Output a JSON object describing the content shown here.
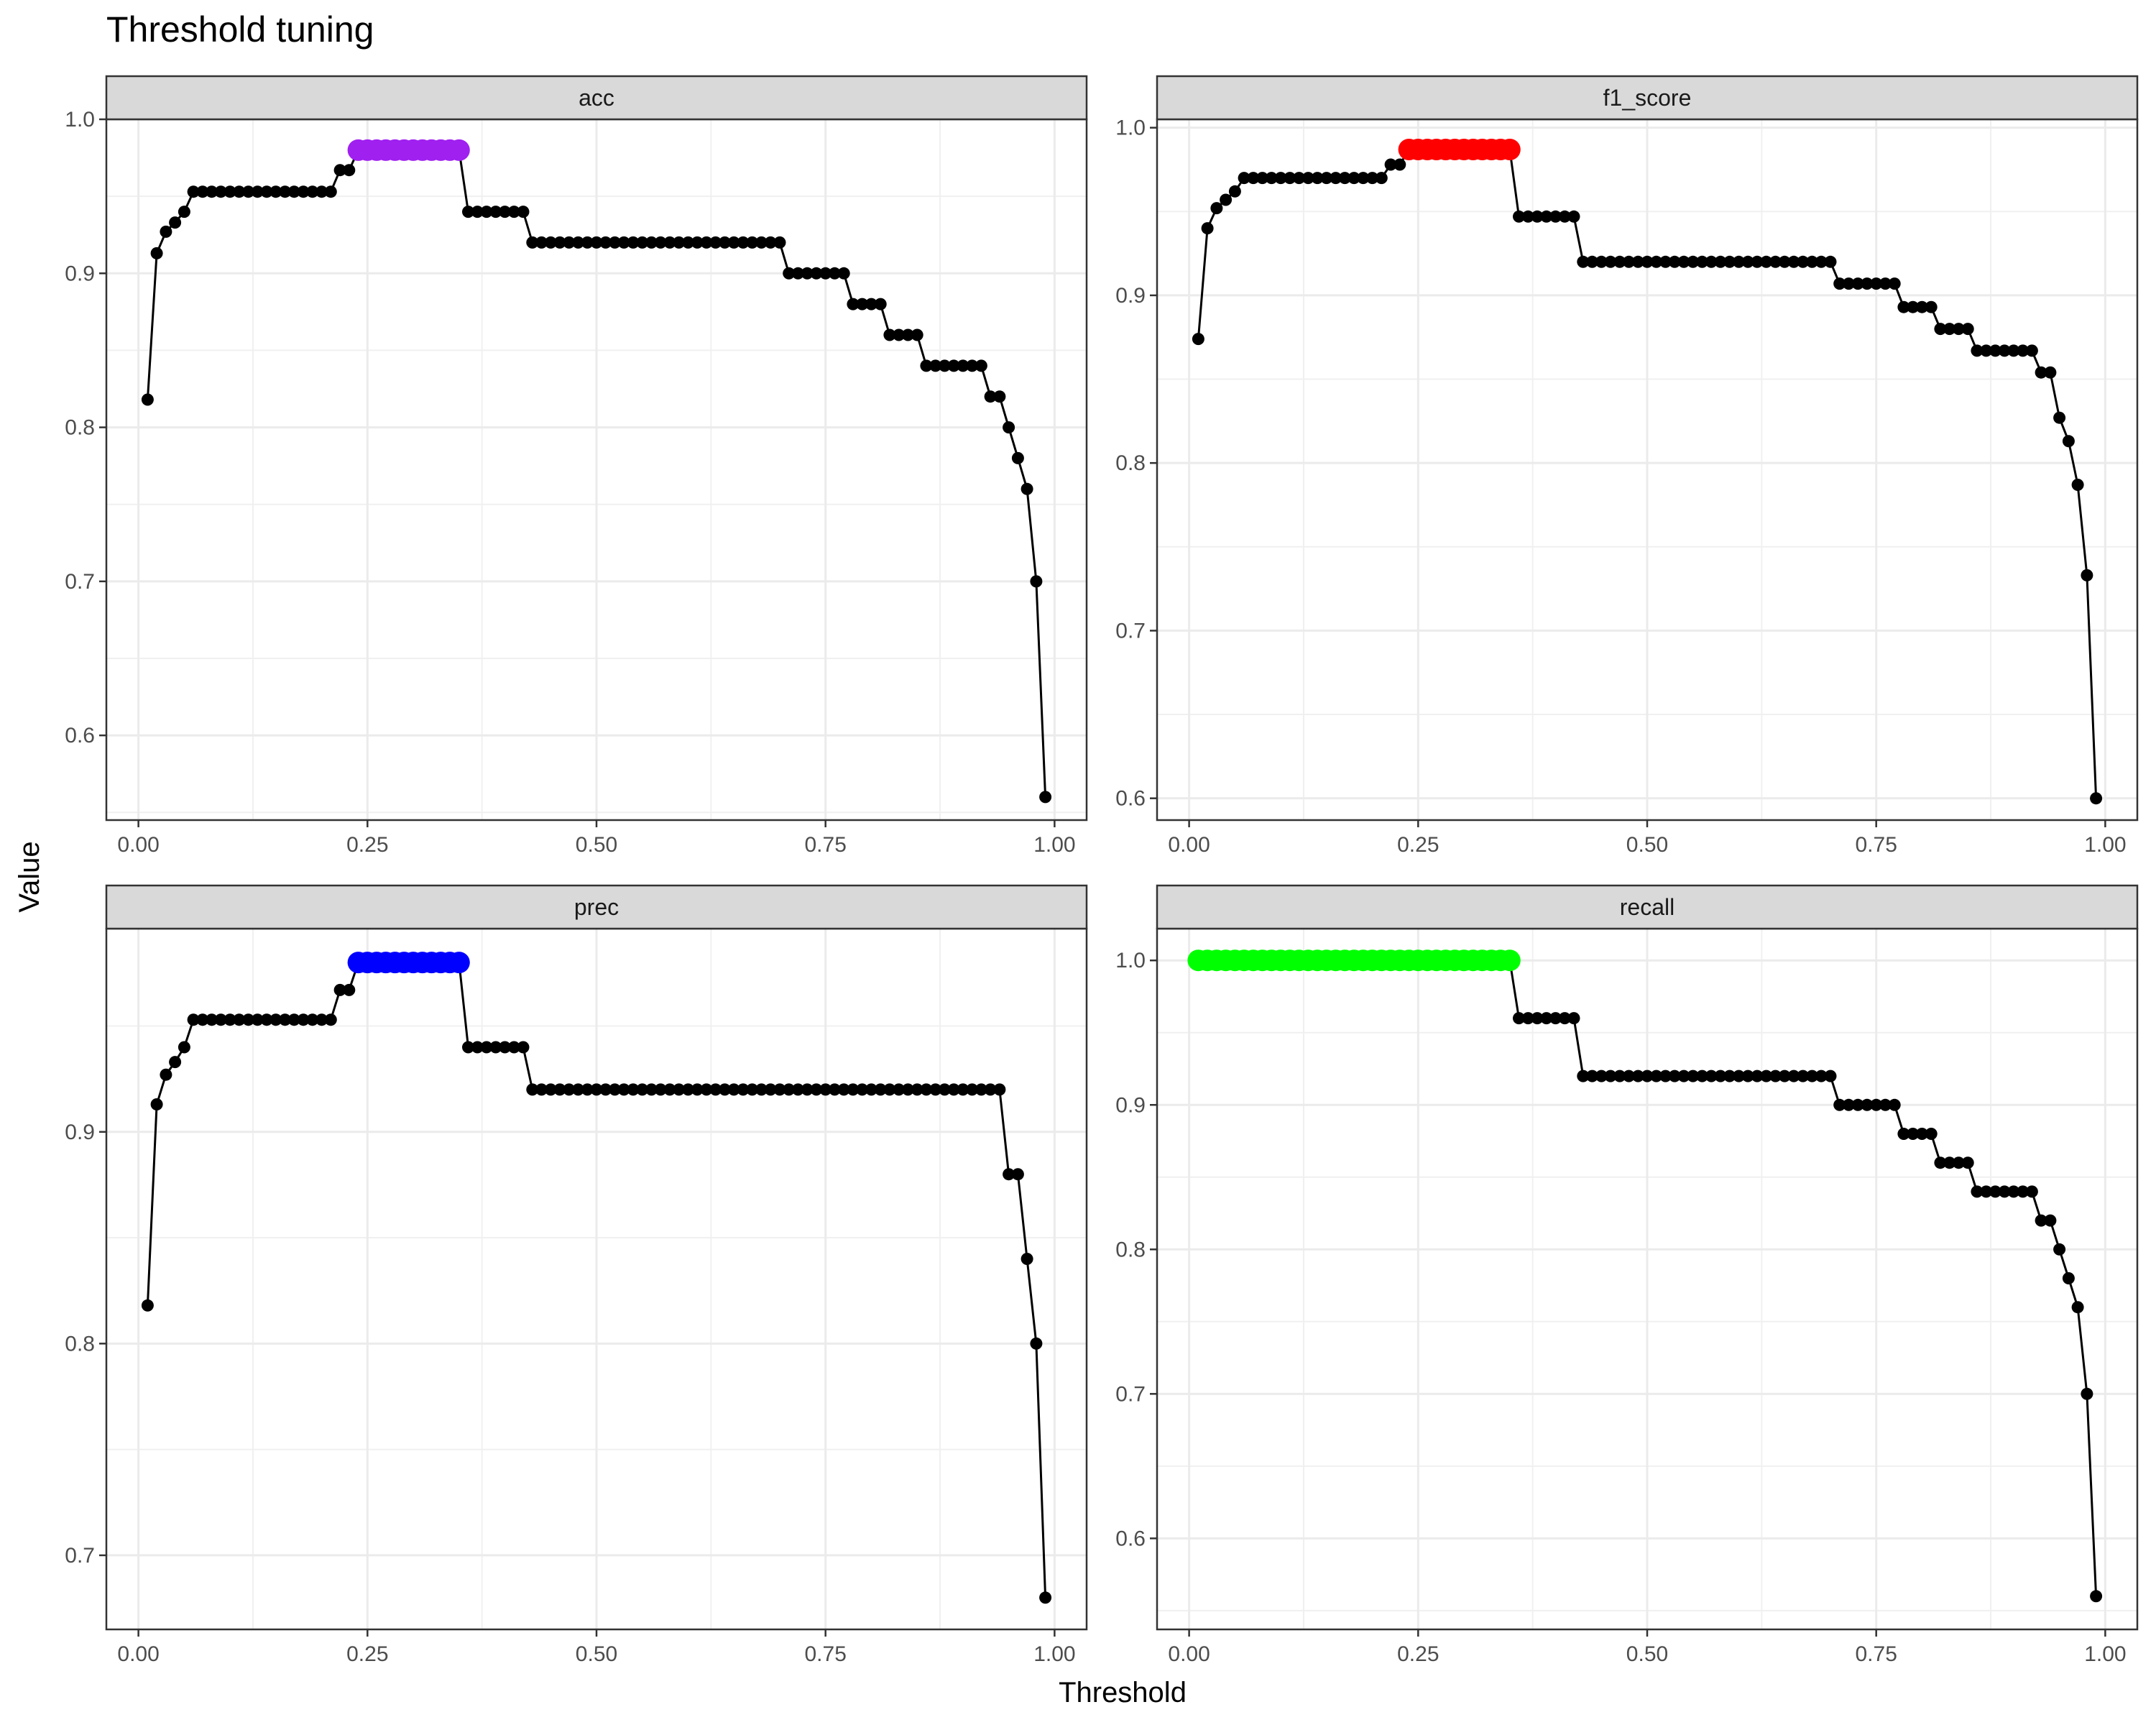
{
  "chart_data": {
    "type": "line",
    "title": "Threshold tuning",
    "xlabel": "Threshold",
    "ylabel": "Value",
    "xlim": [
      -0.035,
      1.035
    ],
    "x_ticks": [
      0.0,
      0.25,
      0.5,
      0.75,
      1.0
    ],
    "x_tick_labels": [
      "0.00",
      "0.25",
      "0.50",
      "0.75",
      "1.00"
    ],
    "grid": true,
    "thresholds": [
      0.01,
      0.02,
      0.03,
      0.04,
      0.05,
      0.06,
      0.07,
      0.08,
      0.09,
      0.1,
      0.11,
      0.12,
      0.13,
      0.14,
      0.15,
      0.16,
      0.17,
      0.18,
      0.19,
      0.2,
      0.21,
      0.22,
      0.23,
      0.24,
      0.25,
      0.26,
      0.27,
      0.28,
      0.29,
      0.3,
      0.31,
      0.32,
      0.33,
      0.34,
      0.35,
      0.36,
      0.37,
      0.38,
      0.39,
      0.4,
      0.41,
      0.42,
      0.43,
      0.44,
      0.45,
      0.46,
      0.47,
      0.48,
      0.49,
      0.5,
      0.51,
      0.52,
      0.53,
      0.54,
      0.55,
      0.56,
      0.57,
      0.58,
      0.59,
      0.6,
      0.61,
      0.62,
      0.63,
      0.64,
      0.65,
      0.66,
      0.67,
      0.68,
      0.69,
      0.7,
      0.71,
      0.72,
      0.73,
      0.74,
      0.75,
      0.76,
      0.77,
      0.78,
      0.79,
      0.8,
      0.81,
      0.82,
      0.83,
      0.84,
      0.85,
      0.86,
      0.87,
      0.88,
      0.89,
      0.9,
      0.91,
      0.92,
      0.93,
      0.94,
      0.95,
      0.96,
      0.97,
      0.98,
      0.99
    ],
    "facets": [
      {
        "name": "acc",
        "highlight_color": "#A020F0",
        "highlight_range": [
          0.24,
          0.35
        ],
        "ylim": [
          0.545,
          1.0
        ],
        "y_ticks": [
          0.6,
          0.7,
          0.8,
          0.9,
          1.0
        ],
        "y_tick_labels": [
          "0.6",
          "0.7",
          "0.8",
          "0.9",
          "1.0"
        ],
        "values": [
          0.818,
          0.913,
          0.927,
          0.933,
          0.94,
          0.953,
          0.953,
          0.953,
          0.953,
          0.953,
          0.953,
          0.953,
          0.953,
          0.953,
          0.953,
          0.953,
          0.953,
          0.953,
          0.953,
          0.953,
          0.953,
          0.967,
          0.967,
          0.98,
          0.98,
          0.98,
          0.98,
          0.98,
          0.98,
          0.98,
          0.98,
          0.98,
          0.98,
          0.98,
          0.98,
          0.94,
          0.94,
          0.94,
          0.94,
          0.94,
          0.94,
          0.94,
          0.92,
          0.92,
          0.92,
          0.92,
          0.92,
          0.92,
          0.92,
          0.92,
          0.92,
          0.92,
          0.92,
          0.92,
          0.92,
          0.92,
          0.92,
          0.92,
          0.92,
          0.92,
          0.92,
          0.92,
          0.92,
          0.92,
          0.92,
          0.92,
          0.92,
          0.92,
          0.92,
          0.92,
          0.9,
          0.9,
          0.9,
          0.9,
          0.9,
          0.9,
          0.9,
          0.88,
          0.88,
          0.88,
          0.88,
          0.86,
          0.86,
          0.86,
          0.86,
          0.84,
          0.84,
          0.84,
          0.84,
          0.84,
          0.84,
          0.84,
          0.82,
          0.82,
          0.8,
          0.78,
          0.76,
          0.7,
          0.56
        ]
      },
      {
        "name": "f1_score",
        "highlight_color": "#FF0000",
        "highlight_range": [
          0.24,
          0.35
        ],
        "ylim": [
          0.587,
          1.005
        ],
        "y_ticks": [
          0.6,
          0.7,
          0.8,
          0.9,
          1.0
        ],
        "y_tick_labels": [
          "0.6",
          "0.7",
          "0.8",
          "0.9",
          "1.0"
        ],
        "values": [
          0.874,
          0.94,
          0.952,
          0.957,
          0.962,
          0.97,
          0.97,
          0.97,
          0.97,
          0.97,
          0.97,
          0.97,
          0.97,
          0.97,
          0.97,
          0.97,
          0.97,
          0.97,
          0.97,
          0.97,
          0.97,
          0.978,
          0.978,
          0.987,
          0.987,
          0.987,
          0.987,
          0.987,
          0.987,
          0.987,
          0.987,
          0.987,
          0.987,
          0.987,
          0.987,
          0.947,
          0.947,
          0.947,
          0.947,
          0.947,
          0.947,
          0.947,
          0.92,
          0.92,
          0.92,
          0.92,
          0.92,
          0.92,
          0.92,
          0.92,
          0.92,
          0.92,
          0.92,
          0.92,
          0.92,
          0.92,
          0.92,
          0.92,
          0.92,
          0.92,
          0.92,
          0.92,
          0.92,
          0.92,
          0.92,
          0.92,
          0.92,
          0.92,
          0.92,
          0.92,
          0.907,
          0.907,
          0.907,
          0.907,
          0.907,
          0.907,
          0.907,
          0.893,
          0.893,
          0.893,
          0.893,
          0.88,
          0.88,
          0.88,
          0.88,
          0.867,
          0.867,
          0.867,
          0.867,
          0.867,
          0.867,
          0.867,
          0.854,
          0.854,
          0.827,
          0.813,
          0.787,
          0.733,
          0.6
        ]
      },
      {
        "name": "prec",
        "highlight_color": "#0000FF",
        "highlight_range": [
          0.24,
          0.35
        ],
        "ylim": [
          0.665,
          0.996
        ],
        "y_ticks": [
          0.7,
          0.8,
          0.9
        ],
        "y_tick_labels": [
          "0.7",
          "0.8",
          "0.9"
        ],
        "values": [
          0.818,
          0.913,
          0.927,
          0.933,
          0.94,
          0.953,
          0.953,
          0.953,
          0.953,
          0.953,
          0.953,
          0.953,
          0.953,
          0.953,
          0.953,
          0.953,
          0.953,
          0.953,
          0.953,
          0.953,
          0.953,
          0.967,
          0.967,
          0.98,
          0.98,
          0.98,
          0.98,
          0.98,
          0.98,
          0.98,
          0.98,
          0.98,
          0.98,
          0.98,
          0.98,
          0.94,
          0.94,
          0.94,
          0.94,
          0.94,
          0.94,
          0.94,
          0.92,
          0.92,
          0.92,
          0.92,
          0.92,
          0.92,
          0.92,
          0.92,
          0.92,
          0.92,
          0.92,
          0.92,
          0.92,
          0.92,
          0.92,
          0.92,
          0.92,
          0.92,
          0.92,
          0.92,
          0.92,
          0.92,
          0.92,
          0.92,
          0.92,
          0.92,
          0.92,
          0.92,
          0.92,
          0.92,
          0.92,
          0.92,
          0.92,
          0.92,
          0.92,
          0.92,
          0.92,
          0.92,
          0.92,
          0.92,
          0.92,
          0.92,
          0.92,
          0.92,
          0.92,
          0.92,
          0.92,
          0.92,
          0.92,
          0.92,
          0.92,
          0.92,
          0.88,
          0.88,
          0.84,
          0.8,
          0.68
        ]
      },
      {
        "name": "recall",
        "highlight_color": "#00FF00",
        "highlight_range": [
          0.01,
          0.35
        ],
        "ylim": [
          0.537,
          1.022
        ],
        "y_ticks": [
          0.6,
          0.7,
          0.8,
          0.9,
          1.0
        ],
        "y_tick_labels": [
          "0.6",
          "0.7",
          "0.8",
          "0.9",
          "1.0"
        ],
        "values": [
          1.0,
          1.0,
          1.0,
          1.0,
          1.0,
          1.0,
          1.0,
          1.0,
          1.0,
          1.0,
          1.0,
          1.0,
          1.0,
          1.0,
          1.0,
          1.0,
          1.0,
          1.0,
          1.0,
          1.0,
          1.0,
          1.0,
          1.0,
          1.0,
          1.0,
          1.0,
          1.0,
          1.0,
          1.0,
          1.0,
          1.0,
          1.0,
          1.0,
          1.0,
          1.0,
          0.96,
          0.96,
          0.96,
          0.96,
          0.96,
          0.96,
          0.96,
          0.92,
          0.92,
          0.92,
          0.92,
          0.92,
          0.92,
          0.92,
          0.92,
          0.92,
          0.92,
          0.92,
          0.92,
          0.92,
          0.92,
          0.92,
          0.92,
          0.92,
          0.92,
          0.92,
          0.92,
          0.92,
          0.92,
          0.92,
          0.92,
          0.92,
          0.92,
          0.92,
          0.92,
          0.9,
          0.9,
          0.9,
          0.9,
          0.9,
          0.9,
          0.9,
          0.88,
          0.88,
          0.88,
          0.88,
          0.86,
          0.86,
          0.86,
          0.86,
          0.84,
          0.84,
          0.84,
          0.84,
          0.84,
          0.84,
          0.84,
          0.82,
          0.82,
          0.8,
          0.78,
          0.76,
          0.7,
          0.56
        ]
      }
    ]
  }
}
